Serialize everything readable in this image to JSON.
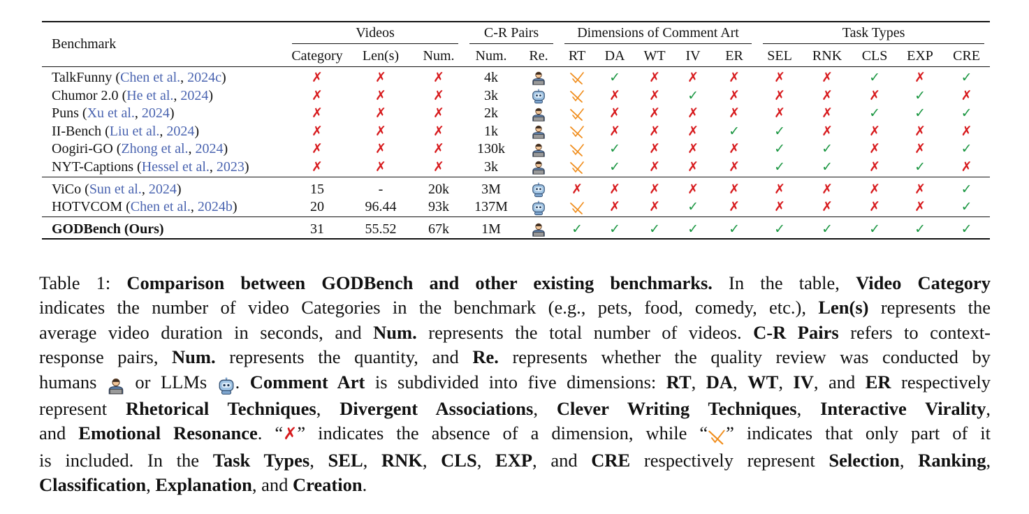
{
  "table": {
    "header_benchmark": "Benchmark",
    "groups": {
      "videos": "Videos",
      "cr_pairs": "C-R Pairs",
      "dimensions": "Dimensions of Comment Art",
      "task_types": "Task Types"
    },
    "subheaders": [
      "Category",
      "Len(s)",
      "Num.",
      "Num.",
      "Re.",
      "RT",
      "DA",
      "WT",
      "IV",
      "ER",
      "SEL",
      "RNK",
      "CLS",
      "EXP",
      "CRE"
    ],
    "rows": [
      {
        "name": "TalkFunny",
        "cite_pre": " (",
        "cite_author": "Chen et al.",
        "cite_mid": ", ",
        "cite_year": "2024c",
        "cite_post": ")",
        "category": "✗",
        "len": "✗",
        "num": "✗",
        "cr_num": "4k",
        "review": "human",
        "marks": [
          "p",
          "y",
          "n",
          "n",
          "n",
          "n",
          "n",
          "y",
          "n",
          "y"
        ]
      },
      {
        "name": "Chumor 2.0",
        "cite_pre": " (",
        "cite_author": "He et al.",
        "cite_mid": ", ",
        "cite_year": "2024",
        "cite_post": ")",
        "category": "✗",
        "len": "✗",
        "num": "✗",
        "cr_num": "3k",
        "review": "llm",
        "marks": [
          "p",
          "n",
          "n",
          "y",
          "n",
          "n",
          "n",
          "n",
          "y",
          "n"
        ]
      },
      {
        "name": "Puns",
        "cite_pre": " (",
        "cite_author": "Xu et al.",
        "cite_mid": ", ",
        "cite_year": "2024",
        "cite_post": ")",
        "category": "✗",
        "len": "✗",
        "num": "✗",
        "cr_num": "2k",
        "review": "human",
        "marks": [
          "p",
          "n",
          "n",
          "n",
          "n",
          "n",
          "n",
          "y",
          "y",
          "y"
        ]
      },
      {
        "name": "II-Bench",
        "cite_pre": " (",
        "cite_author": "Liu et al.",
        "cite_mid": ", ",
        "cite_year": "2024",
        "cite_post": ")",
        "category": "✗",
        "len": "✗",
        "num": "✗",
        "cr_num": "1k",
        "review": "human",
        "marks": [
          "p",
          "n",
          "n",
          "n",
          "y",
          "y",
          "n",
          "n",
          "n",
          "n"
        ]
      },
      {
        "name": "Oogiri-GO",
        "cite_pre": " (",
        "cite_author": "Zhong et al.",
        "cite_mid": ", ",
        "cite_year": "2024",
        "cite_post": ")",
        "category": "✗",
        "len": "✗",
        "num": "✗",
        "cr_num": "130k",
        "review": "human",
        "marks": [
          "p",
          "y",
          "n",
          "n",
          "n",
          "y",
          "y",
          "n",
          "n",
          "y"
        ]
      },
      {
        "name": "NYT-Captions",
        "cite_pre": " (",
        "cite_author": "Hessel et al.",
        "cite_mid": ", ",
        "cite_year": "2023",
        "cite_post": ")",
        "category": "✗",
        "len": "✗",
        "num": "✗",
        "cr_num": "3k",
        "review": "human",
        "marks": [
          "p",
          "y",
          "n",
          "n",
          "n",
          "y",
          "y",
          "n",
          "y",
          "n"
        ]
      },
      {
        "name": "ViCo",
        "cite_pre": " (",
        "cite_author": "Sun et al.",
        "cite_mid": ", ",
        "cite_year": "2024",
        "cite_post": ")",
        "category": "15",
        "len": "-",
        "num": "20k",
        "cr_num": "3M",
        "review": "llm",
        "marks": [
          "n",
          "n",
          "n",
          "n",
          "n",
          "n",
          "n",
          "n",
          "n",
          "y"
        ]
      },
      {
        "name": "HOTVCOM",
        "cite_pre": " (",
        "cite_author": "Chen et al.",
        "cite_mid": ", ",
        "cite_year": "2024b",
        "cite_post": ")",
        "category": "20",
        "len": "96.44",
        "num": "93k",
        "cr_num": "137M",
        "review": "llm",
        "marks": [
          "p",
          "n",
          "n",
          "y",
          "n",
          "n",
          "n",
          "n",
          "n",
          "y"
        ]
      },
      {
        "name": "GODBench (Ours)",
        "cite_pre": "",
        "cite_author": "",
        "cite_mid": "",
        "cite_year": "",
        "cite_post": "",
        "category": "31",
        "len": "55.52",
        "num": "67k",
        "cr_num": "1M",
        "review": "human",
        "marks": [
          "y",
          "y",
          "y",
          "y",
          "y",
          "y",
          "y",
          "y",
          "y",
          "y"
        ]
      }
    ],
    "colors": {
      "check": "#1a9641",
      "cross": "#d7191c",
      "partial": "#f08c1a",
      "citation": "#4a64b0"
    }
  },
  "caption": {
    "lines": [
      [
        [
          "t",
          "Table 1:  "
        ],
        [
          "b",
          "Comparison between GODBench and other existing benchmarks."
        ],
        [
          "t",
          "  In the table, "
        ],
        [
          "b",
          "Video Category"
        ]
      ],
      [
        [
          "t",
          "indicates the number of video Categories in the benchmark (e.g., pets, food, comedy, etc.), "
        ],
        [
          "b",
          "Len(s)"
        ],
        [
          "t",
          " represents the"
        ]
      ],
      [
        [
          "t",
          "average video duration in seconds, and "
        ],
        [
          "b",
          "Num."
        ],
        [
          "t",
          " represents the total number of videos.  "
        ],
        [
          "b",
          "C-R Pairs"
        ],
        [
          "t",
          " refers to context-"
        ]
      ],
      [
        [
          "t",
          "response pairs, "
        ],
        [
          "b",
          "Num."
        ],
        [
          "t",
          " represents the quantity, and "
        ],
        [
          "b",
          "Re."
        ],
        [
          "t",
          " represents whether the quality review was conducted by"
        ]
      ],
      [
        [
          "t",
          "humans "
        ],
        [
          "i",
          "human"
        ],
        [
          "t",
          " or LLMs "
        ],
        [
          "i",
          "llm"
        ],
        [
          "t",
          ". "
        ],
        [
          "b",
          "Comment Art"
        ],
        [
          "t",
          " is subdivided into five dimensions: "
        ],
        [
          "b",
          "RT"
        ],
        [
          "t",
          ", "
        ],
        [
          "b",
          "DA"
        ],
        [
          "t",
          ", "
        ],
        [
          "b",
          "WT"
        ],
        [
          "t",
          ", "
        ],
        [
          "b",
          "IV"
        ],
        [
          "t",
          ", and "
        ],
        [
          "b",
          "ER"
        ],
        [
          "t",
          " respectively"
        ]
      ],
      [
        [
          "t",
          "represent "
        ],
        [
          "b",
          "Rhetorical Techniques"
        ],
        [
          "t",
          ", "
        ],
        [
          "b",
          "Divergent Associations"
        ],
        [
          "t",
          ", "
        ],
        [
          "b",
          "Clever Writing Techniques"
        ],
        [
          "t",
          ", "
        ],
        [
          "b",
          "Interactive Virality"
        ],
        [
          "t",
          ","
        ]
      ],
      [
        [
          "t",
          "and "
        ],
        [
          "b",
          "Emotional Resonance"
        ],
        [
          "t",
          ".  “"
        ],
        [
          "x",
          "cross"
        ],
        [
          "t",
          "” indicates the absence of a dimension, while “"
        ],
        [
          "x",
          "partial"
        ],
        [
          "t",
          "” indicates that only part of it"
        ]
      ],
      [
        [
          "t",
          "is included.  In the "
        ],
        [
          "b",
          "Task Types"
        ],
        [
          "t",
          ", "
        ],
        [
          "b",
          "SEL"
        ],
        [
          "t",
          ", "
        ],
        [
          "b",
          "RNK"
        ],
        [
          "t",
          ", "
        ],
        [
          "b",
          "CLS"
        ],
        [
          "t",
          ", "
        ],
        [
          "b",
          "EXP"
        ],
        [
          "t",
          ", and "
        ],
        [
          "b",
          "CRE"
        ],
        [
          "t",
          " respectively represent "
        ],
        [
          "b",
          "Selection"
        ],
        [
          "t",
          ", "
        ],
        [
          "b",
          "Ranking"
        ],
        [
          "t",
          ","
        ]
      ],
      [
        [
          "b",
          "Classification"
        ],
        [
          "t",
          ", "
        ],
        [
          "b",
          "Explanation"
        ],
        [
          "t",
          ", and "
        ],
        [
          "b",
          "Creation"
        ],
        [
          "t",
          "."
        ]
      ]
    ]
  }
}
